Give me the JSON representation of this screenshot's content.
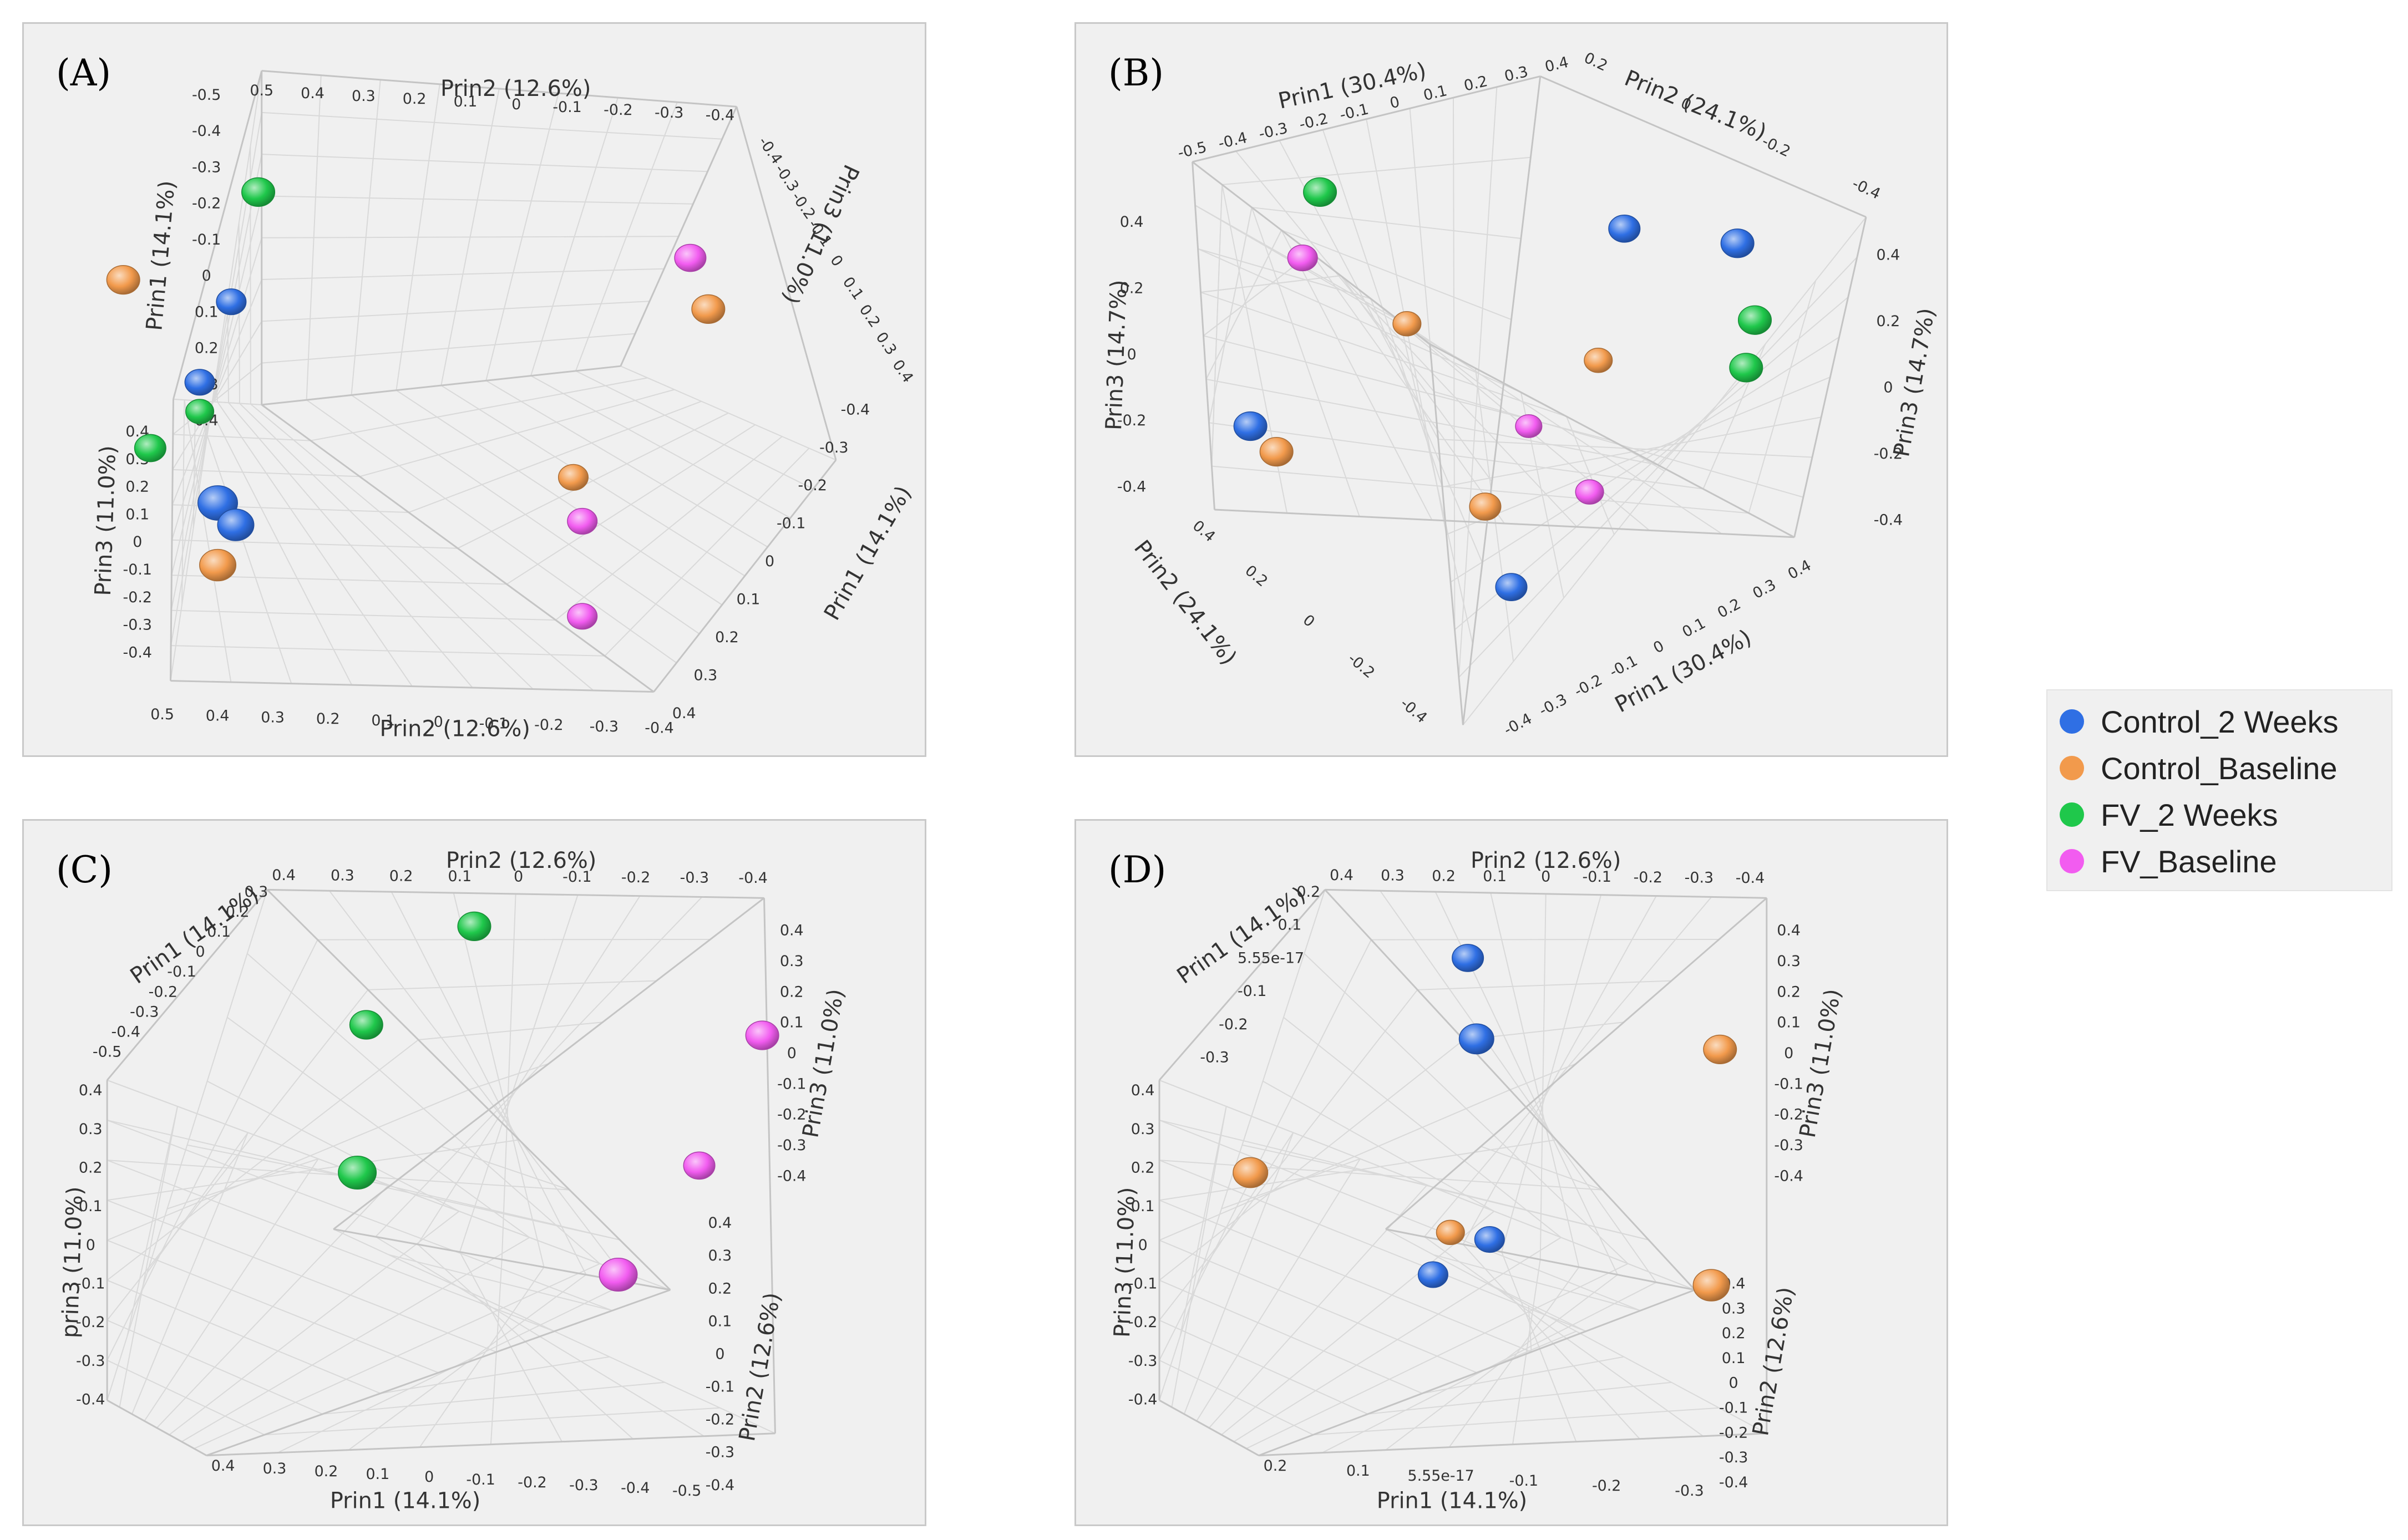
{
  "legend": [
    {
      "label": "Control_2 Weeks",
      "color": "#2f6fe4"
    },
    {
      "label": "Control_Baseline",
      "color": "#f29a4c"
    },
    {
      "label": "FV_2 Weeks",
      "color": "#1fc84b"
    },
    {
      "label": "FV_Baseline",
      "color": "#f25cf0"
    }
  ],
  "chart_data": [
    {
      "type": "scatter3d",
      "panel_label": "(A)",
      "axis_titles": [
        "Prin2 (12.6%)",
        "Prin1 (14.1%)",
        "Prin3 (11.0%)",
        "Prin2 (12.6%)",
        "Prin3 (11.0%)",
        "Prin1 (14.1%)"
      ],
      "tick_groups": [
        [
          "0.5",
          "0.4",
          "0.3",
          "0.2",
          "0.1",
          "0",
          "-0.1",
          "-0.2",
          "-0.3",
          "-0.4"
        ],
        [
          "-0.5",
          "-0.4",
          "-0.3",
          "-0.2",
          "-0.1",
          "0",
          "0.1",
          "0.2",
          "0.3",
          "0.4"
        ],
        [
          "0.4",
          "0.3",
          "0.2",
          "0.1",
          "0",
          "-0.1",
          "-0.2",
          "-0.3",
          "-0.4"
        ],
        [
          "0.5",
          "0.4",
          "0.3",
          "0.2",
          "0.1",
          "0",
          "-0.1",
          "-0.2",
          "-0.3",
          "-0.4"
        ],
        [
          "-0.4",
          "-0.3",
          "-0.2",
          "-0.1",
          "0",
          "0.1",
          "0.2",
          "0.3",
          "0.4"
        ],
        [
          "-0.4",
          "-0.3",
          "-0.2",
          "-0.1",
          "0",
          "0.1",
          "0.2",
          "0.3",
          "0.4"
        ]
      ],
      "points": [
        {
          "group": "FV_2 Weeks",
          "x": 0.26,
          "y": 0.23,
          "r": 1
        },
        {
          "group": "Control_Baseline",
          "x": 0.11,
          "y": 0.35,
          "r": 1
        },
        {
          "group": "Control_2 Weeks",
          "x": 0.23,
          "y": 0.38,
          "r": 0.9
        },
        {
          "group": "FV_Baseline",
          "x": 0.74,
          "y": 0.32,
          "r": 0.95
        },
        {
          "group": "Control_Baseline",
          "x": 0.76,
          "y": 0.39,
          "r": 1
        },
        {
          "group": "Control_2 Weeks",
          "x": 0.195,
          "y": 0.49,
          "r": 0.9
        },
        {
          "group": "FV_2 Weeks",
          "x": 0.195,
          "y": 0.53,
          "r": 0.85
        },
        {
          "group": "FV_2 Weeks",
          "x": 0.14,
          "y": 0.58,
          "r": 0.95
        },
        {
          "group": "Control_2 Weeks",
          "x": 0.215,
          "y": 0.655,
          "r": 1.2
        },
        {
          "group": "Control_2 Weeks",
          "x": 0.235,
          "y": 0.685,
          "r": 1.1
        },
        {
          "group": "Control_Baseline",
          "x": 0.215,
          "y": 0.74,
          "r": 1.1
        },
        {
          "group": "Control_Baseline",
          "x": 0.61,
          "y": 0.62,
          "r": 0.9
        },
        {
          "group": "FV_Baseline",
          "x": 0.62,
          "y": 0.68,
          "r": 0.9
        },
        {
          "group": "FV_Baseline",
          "x": 0.62,
          "y": 0.81,
          "r": 0.9
        }
      ]
    },
    {
      "type": "scatter3d",
      "panel_label": "(B)",
      "axis_titles": [
        "Prin1 (30.4%)",
        "Prin2 (24.1%)",
        "Prin3 (14.7%)",
        "Prin3 (14.7%)",
        "Prin2 (24.1%)",
        "Prin1 (30.4%)"
      ],
      "tick_groups": [
        [
          "-0.5",
          "-0.4",
          "-0.3",
          "-0.2",
          "-0.1",
          "0",
          "0.1",
          "0.2",
          "0.3",
          "0.4"
        ],
        [
          "0.2",
          "0",
          "-0.2",
          "-0.4"
        ],
        [
          "0.4",
          "0.2",
          "0",
          "-0.2",
          "-0.4"
        ],
        [
          "0.4",
          "0.2",
          "0",
          "-0.2",
          "-0.4"
        ],
        [
          "0.4",
          "0.2",
          "0",
          "-0.2",
          "-0.4"
        ],
        [
          "0.4",
          "0.3",
          "0.2",
          "0.1",
          "0",
          "-0.1",
          "-0.2",
          "-0.3",
          "-0.4"
        ]
      ],
      "points": [
        {
          "group": "FV_2 Weeks",
          "x": 0.28,
          "y": 0.23,
          "r": 1
        },
        {
          "group": "FV_Baseline",
          "x": 0.26,
          "y": 0.32,
          "r": 0.9
        },
        {
          "group": "Control_Baseline",
          "x": 0.38,
          "y": 0.41,
          "r": 0.85
        },
        {
          "group": "Control_2 Weeks",
          "x": 0.63,
          "y": 0.28,
          "r": 0.95
        },
        {
          "group": "Control_2 Weeks",
          "x": 0.76,
          "y": 0.3,
          "r": 1
        },
        {
          "group": "FV_2 Weeks",
          "x": 0.78,
          "y": 0.405,
          "r": 1
        },
        {
          "group": "FV_2 Weeks",
          "x": 0.77,
          "y": 0.47,
          "r": 1
        },
        {
          "group": "Control_Baseline",
          "x": 0.6,
          "y": 0.46,
          "r": 0.85
        },
        {
          "group": "FV_Baseline",
          "x": 0.52,
          "y": 0.55,
          "r": 0.8
        },
        {
          "group": "Control_2 Weeks",
          "x": 0.2,
          "y": 0.55,
          "r": 1
        },
        {
          "group": "Control_Baseline",
          "x": 0.23,
          "y": 0.585,
          "r": 1
        },
        {
          "group": "FV_Baseline",
          "x": 0.59,
          "y": 0.64,
          "r": 0.85
        },
        {
          "group": "Control_Baseline",
          "x": 0.47,
          "y": 0.66,
          "r": 0.95
        },
        {
          "group": "Control_2 Weeks",
          "x": 0.5,
          "y": 0.77,
          "r": 0.95
        }
      ]
    },
    {
      "type": "scatter3d",
      "panel_label": "(C)",
      "axis_titles": [
        "Prin2 (12.6%)",
        "Prin1 (14.1%)",
        "Prin3 (11.0%)",
        "prin3 (11.0%)",
        "Prin2 (12.6%)",
        "Prin1 (14.1%)"
      ],
      "tick_groups": [
        [
          "0.4",
          "0.3",
          "0.2",
          "0.1",
          "0",
          "-0.1",
          "-0.2",
          "-0.3",
          "-0.4"
        ],
        [
          "0.3",
          "0.2",
          "0.1",
          "0",
          "-0.1",
          "-0.2",
          "-0.3",
          "-0.4",
          "-0.5"
        ],
        [
          "0.4",
          "0.3",
          "0.2",
          "0.1",
          "0",
          "-0.1",
          "-0.2",
          "-0.3",
          "-0.4"
        ],
        [
          "0.4",
          "0.3",
          "0.2",
          "0.1",
          "0",
          "-0.1",
          "-0.2",
          "-0.3",
          "-0.4"
        ],
        [
          "0.4",
          "0.3",
          "0.2",
          "0.1",
          "0",
          "-0.1",
          "-0.2",
          "-0.3",
          "-0.4"
        ],
        [
          "0.4",
          "0.3",
          "0.2",
          "0.1",
          "0",
          "-0.1",
          "-0.2",
          "-0.3",
          "-0.4",
          "-0.5"
        ]
      ],
      "points": [
        {
          "group": "FV_2 Weeks",
          "x": 0.5,
          "y": 0.15,
          "r": 1
        },
        {
          "group": "FV_2 Weeks",
          "x": 0.38,
          "y": 0.29,
          "r": 1
        },
        {
          "group": "FV_Baseline",
          "x": 0.82,
          "y": 0.305,
          "r": 1
        },
        {
          "group": "FV_2 Weeks",
          "x": 0.37,
          "y": 0.5,
          "r": 1.15
        },
        {
          "group": "FV_Baseline",
          "x": 0.75,
          "y": 0.49,
          "r": 0.95
        },
        {
          "group": "FV_Baseline",
          "x": 0.66,
          "y": 0.645,
          "r": 1.15
        }
      ]
    },
    {
      "type": "scatter3d",
      "panel_label": "(D)",
      "axis_titles": [
        "Prin2 (12.6%)",
        "Prin1 (14.1%)",
        "Prin3 (11.0%)",
        "Prin3 (11.0%)",
        "Prin2 (12.6%)",
        "Prin1 (14.1%)"
      ],
      "tick_groups": [
        [
          "0.4",
          "0.3",
          "0.2",
          "0.1",
          "0",
          "-0.1",
          "-0.2",
          "-0.3",
          "-0.4"
        ],
        [
          "0.2",
          "0.1",
          "5.55e-17",
          "-0.1",
          "-0.2",
          "-0.3"
        ],
        [
          "0.4",
          "0.3",
          "0.2",
          "0.1",
          "0",
          "-0.1",
          "-0.2",
          "-0.3",
          "-0.4"
        ],
        [
          "0.4",
          "0.3",
          "0.2",
          "0.1",
          "0",
          "-0.1",
          "-0.2",
          "-0.3",
          "-0.4"
        ],
        [
          "0.4",
          "0.3",
          "0.2",
          "0.1",
          "0",
          "-0.1",
          "-0.2",
          "-0.3",
          "-0.4"
        ],
        [
          "0.2",
          "0.1",
          "5.55e-17",
          "-0.1",
          "-0.2",
          "-0.3"
        ]
      ],
      "points": [
        {
          "group": "Control_2 Weeks",
          "x": 0.45,
          "y": 0.195,
          "r": 0.95
        },
        {
          "group": "Control_2 Weeks",
          "x": 0.46,
          "y": 0.31,
          "r": 1.05
        },
        {
          "group": "Control_Baseline",
          "x": 0.74,
          "y": 0.325,
          "r": 1
        },
        {
          "group": "Control_Baseline",
          "x": 0.2,
          "y": 0.5,
          "r": 1.05
        },
        {
          "group": "Control_Baseline",
          "x": 0.43,
          "y": 0.585,
          "r": 0.85
        },
        {
          "group": "Control_2 Weeks",
          "x": 0.475,
          "y": 0.595,
          "r": 0.9
        },
        {
          "group": "Control_2 Weeks",
          "x": 0.41,
          "y": 0.645,
          "r": 0.9
        },
        {
          "group": "Control_Baseline",
          "x": 0.73,
          "y": 0.66,
          "r": 1.1
        }
      ]
    }
  ]
}
